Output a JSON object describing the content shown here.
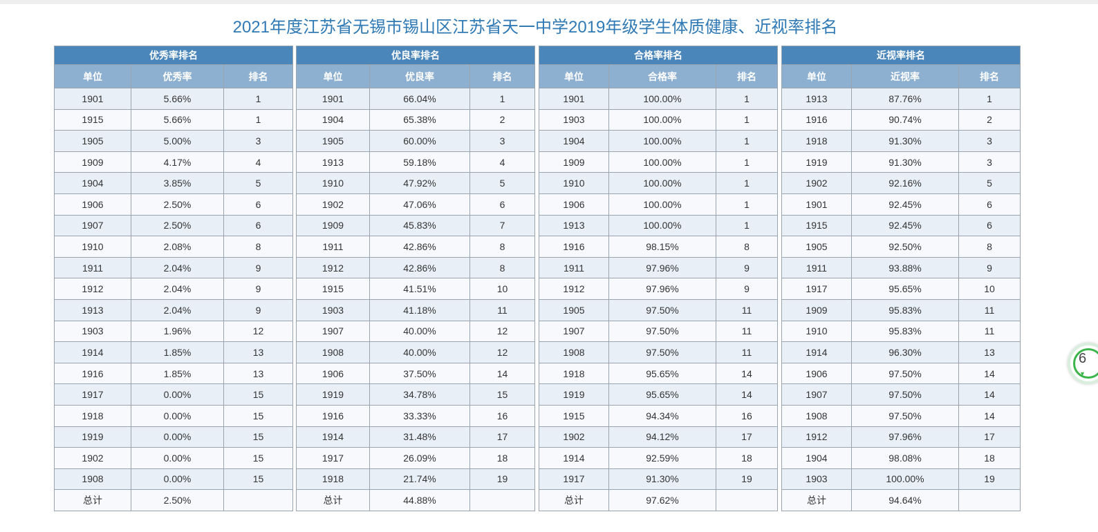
{
  "page": {
    "title": "2021年度江苏省无锡市锡山区江苏省天一中学2019年级学生体质健康、近视率排名"
  },
  "tables": [
    {
      "title": "优秀率排名",
      "headers": [
        "单位",
        "优秀率",
        "排名"
      ],
      "rows": [
        [
          "1901",
          "5.66%",
          "1"
        ],
        [
          "1915",
          "5.66%",
          "1"
        ],
        [
          "1905",
          "5.00%",
          "3"
        ],
        [
          "1909",
          "4.17%",
          "4"
        ],
        [
          "1904",
          "3.85%",
          "5"
        ],
        [
          "1906",
          "2.50%",
          "6"
        ],
        [
          "1907",
          "2.50%",
          "6"
        ],
        [
          "1910",
          "2.08%",
          "8"
        ],
        [
          "1911",
          "2.04%",
          "9"
        ],
        [
          "1912",
          "2.04%",
          "9"
        ],
        [
          "1913",
          "2.04%",
          "9"
        ],
        [
          "1903",
          "1.96%",
          "12"
        ],
        [
          "1914",
          "1.85%",
          "13"
        ],
        [
          "1916",
          "1.85%",
          "13"
        ],
        [
          "1917",
          "0.00%",
          "15"
        ],
        [
          "1918",
          "0.00%",
          "15"
        ],
        [
          "1919",
          "0.00%",
          "15"
        ],
        [
          "1902",
          "0.00%",
          "15"
        ],
        [
          "1908",
          "0.00%",
          "15"
        ],
        [
          "总计",
          "2.50%",
          ""
        ]
      ]
    },
    {
      "title": "优良率排名",
      "headers": [
        "单位",
        "优良率",
        "排名"
      ],
      "rows": [
        [
          "1901",
          "66.04%",
          "1"
        ],
        [
          "1904",
          "65.38%",
          "2"
        ],
        [
          "1905",
          "60.00%",
          "3"
        ],
        [
          "1913",
          "59.18%",
          "4"
        ],
        [
          "1910",
          "47.92%",
          "5"
        ],
        [
          "1902",
          "47.06%",
          "6"
        ],
        [
          "1909",
          "45.83%",
          "7"
        ],
        [
          "1911",
          "42.86%",
          "8"
        ],
        [
          "1912",
          "42.86%",
          "8"
        ],
        [
          "1915",
          "41.51%",
          "10"
        ],
        [
          "1903",
          "41.18%",
          "11"
        ],
        [
          "1907",
          "40.00%",
          "12"
        ],
        [
          "1908",
          "40.00%",
          "12"
        ],
        [
          "1906",
          "37.50%",
          "14"
        ],
        [
          "1919",
          "34.78%",
          "15"
        ],
        [
          "1916",
          "33.33%",
          "16"
        ],
        [
          "1914",
          "31.48%",
          "17"
        ],
        [
          "1917",
          "26.09%",
          "18"
        ],
        [
          "1918",
          "21.74%",
          "19"
        ],
        [
          "总计",
          "44.88%",
          ""
        ]
      ]
    },
    {
      "title": "合格率排名",
      "headers": [
        "单位",
        "合格率",
        "排名"
      ],
      "rows": [
        [
          "1901",
          "100.00%",
          "1"
        ],
        [
          "1903",
          "100.00%",
          "1"
        ],
        [
          "1904",
          "100.00%",
          "1"
        ],
        [
          "1909",
          "100.00%",
          "1"
        ],
        [
          "1910",
          "100.00%",
          "1"
        ],
        [
          "1906",
          "100.00%",
          "1"
        ],
        [
          "1913",
          "100.00%",
          "1"
        ],
        [
          "1916",
          "98.15%",
          "8"
        ],
        [
          "1911",
          "97.96%",
          "9"
        ],
        [
          "1912",
          "97.96%",
          "9"
        ],
        [
          "1905",
          "97.50%",
          "11"
        ],
        [
          "1907",
          "97.50%",
          "11"
        ],
        [
          "1908",
          "97.50%",
          "11"
        ],
        [
          "1918",
          "95.65%",
          "14"
        ],
        [
          "1919",
          "95.65%",
          "14"
        ],
        [
          "1915",
          "94.34%",
          "16"
        ],
        [
          "1902",
          "94.12%",
          "17"
        ],
        [
          "1914",
          "92.59%",
          "18"
        ],
        [
          "1917",
          "91.30%",
          "19"
        ],
        [
          "总计",
          "97.62%",
          ""
        ]
      ]
    },
    {
      "title": "近视率排名",
      "headers": [
        "单位",
        "近视率",
        "排名"
      ],
      "rows": [
        [
          "1913",
          "87.76%",
          "1"
        ],
        [
          "1916",
          "90.74%",
          "2"
        ],
        [
          "1918",
          "91.30%",
          "3"
        ],
        [
          "1919",
          "91.30%",
          "3"
        ],
        [
          "1902",
          "92.16%",
          "5"
        ],
        [
          "1901",
          "92.45%",
          "6"
        ],
        [
          "1915",
          "92.45%",
          "6"
        ],
        [
          "1905",
          "92.50%",
          "8"
        ],
        [
          "1911",
          "93.88%",
          "9"
        ],
        [
          "1917",
          "95.65%",
          "10"
        ],
        [
          "1909",
          "95.83%",
          "11"
        ],
        [
          "1910",
          "95.83%",
          "11"
        ],
        [
          "1914",
          "96.30%",
          "13"
        ],
        [
          "1906",
          "97.50%",
          "14"
        ],
        [
          "1907",
          "97.50%",
          "14"
        ],
        [
          "1908",
          "97.50%",
          "14"
        ],
        [
          "1912",
          "97.96%",
          "17"
        ],
        [
          "1904",
          "98.08%",
          "18"
        ],
        [
          "1903",
          "100.00%",
          "19"
        ],
        [
          "总计",
          "94.64%",
          ""
        ]
      ]
    }
  ],
  "side_widget": {
    "text": "6",
    "icon": "down-arrow-icon"
  },
  "colors": {
    "title_text": "#2f79b5",
    "table_title_bg": "#4a86b9",
    "table_header_bg": "#8db0d1",
    "row_odd_bg": "#e9eff7",
    "row_even_bg": "#f7f9fc",
    "widget_green": "#3bb54a"
  }
}
